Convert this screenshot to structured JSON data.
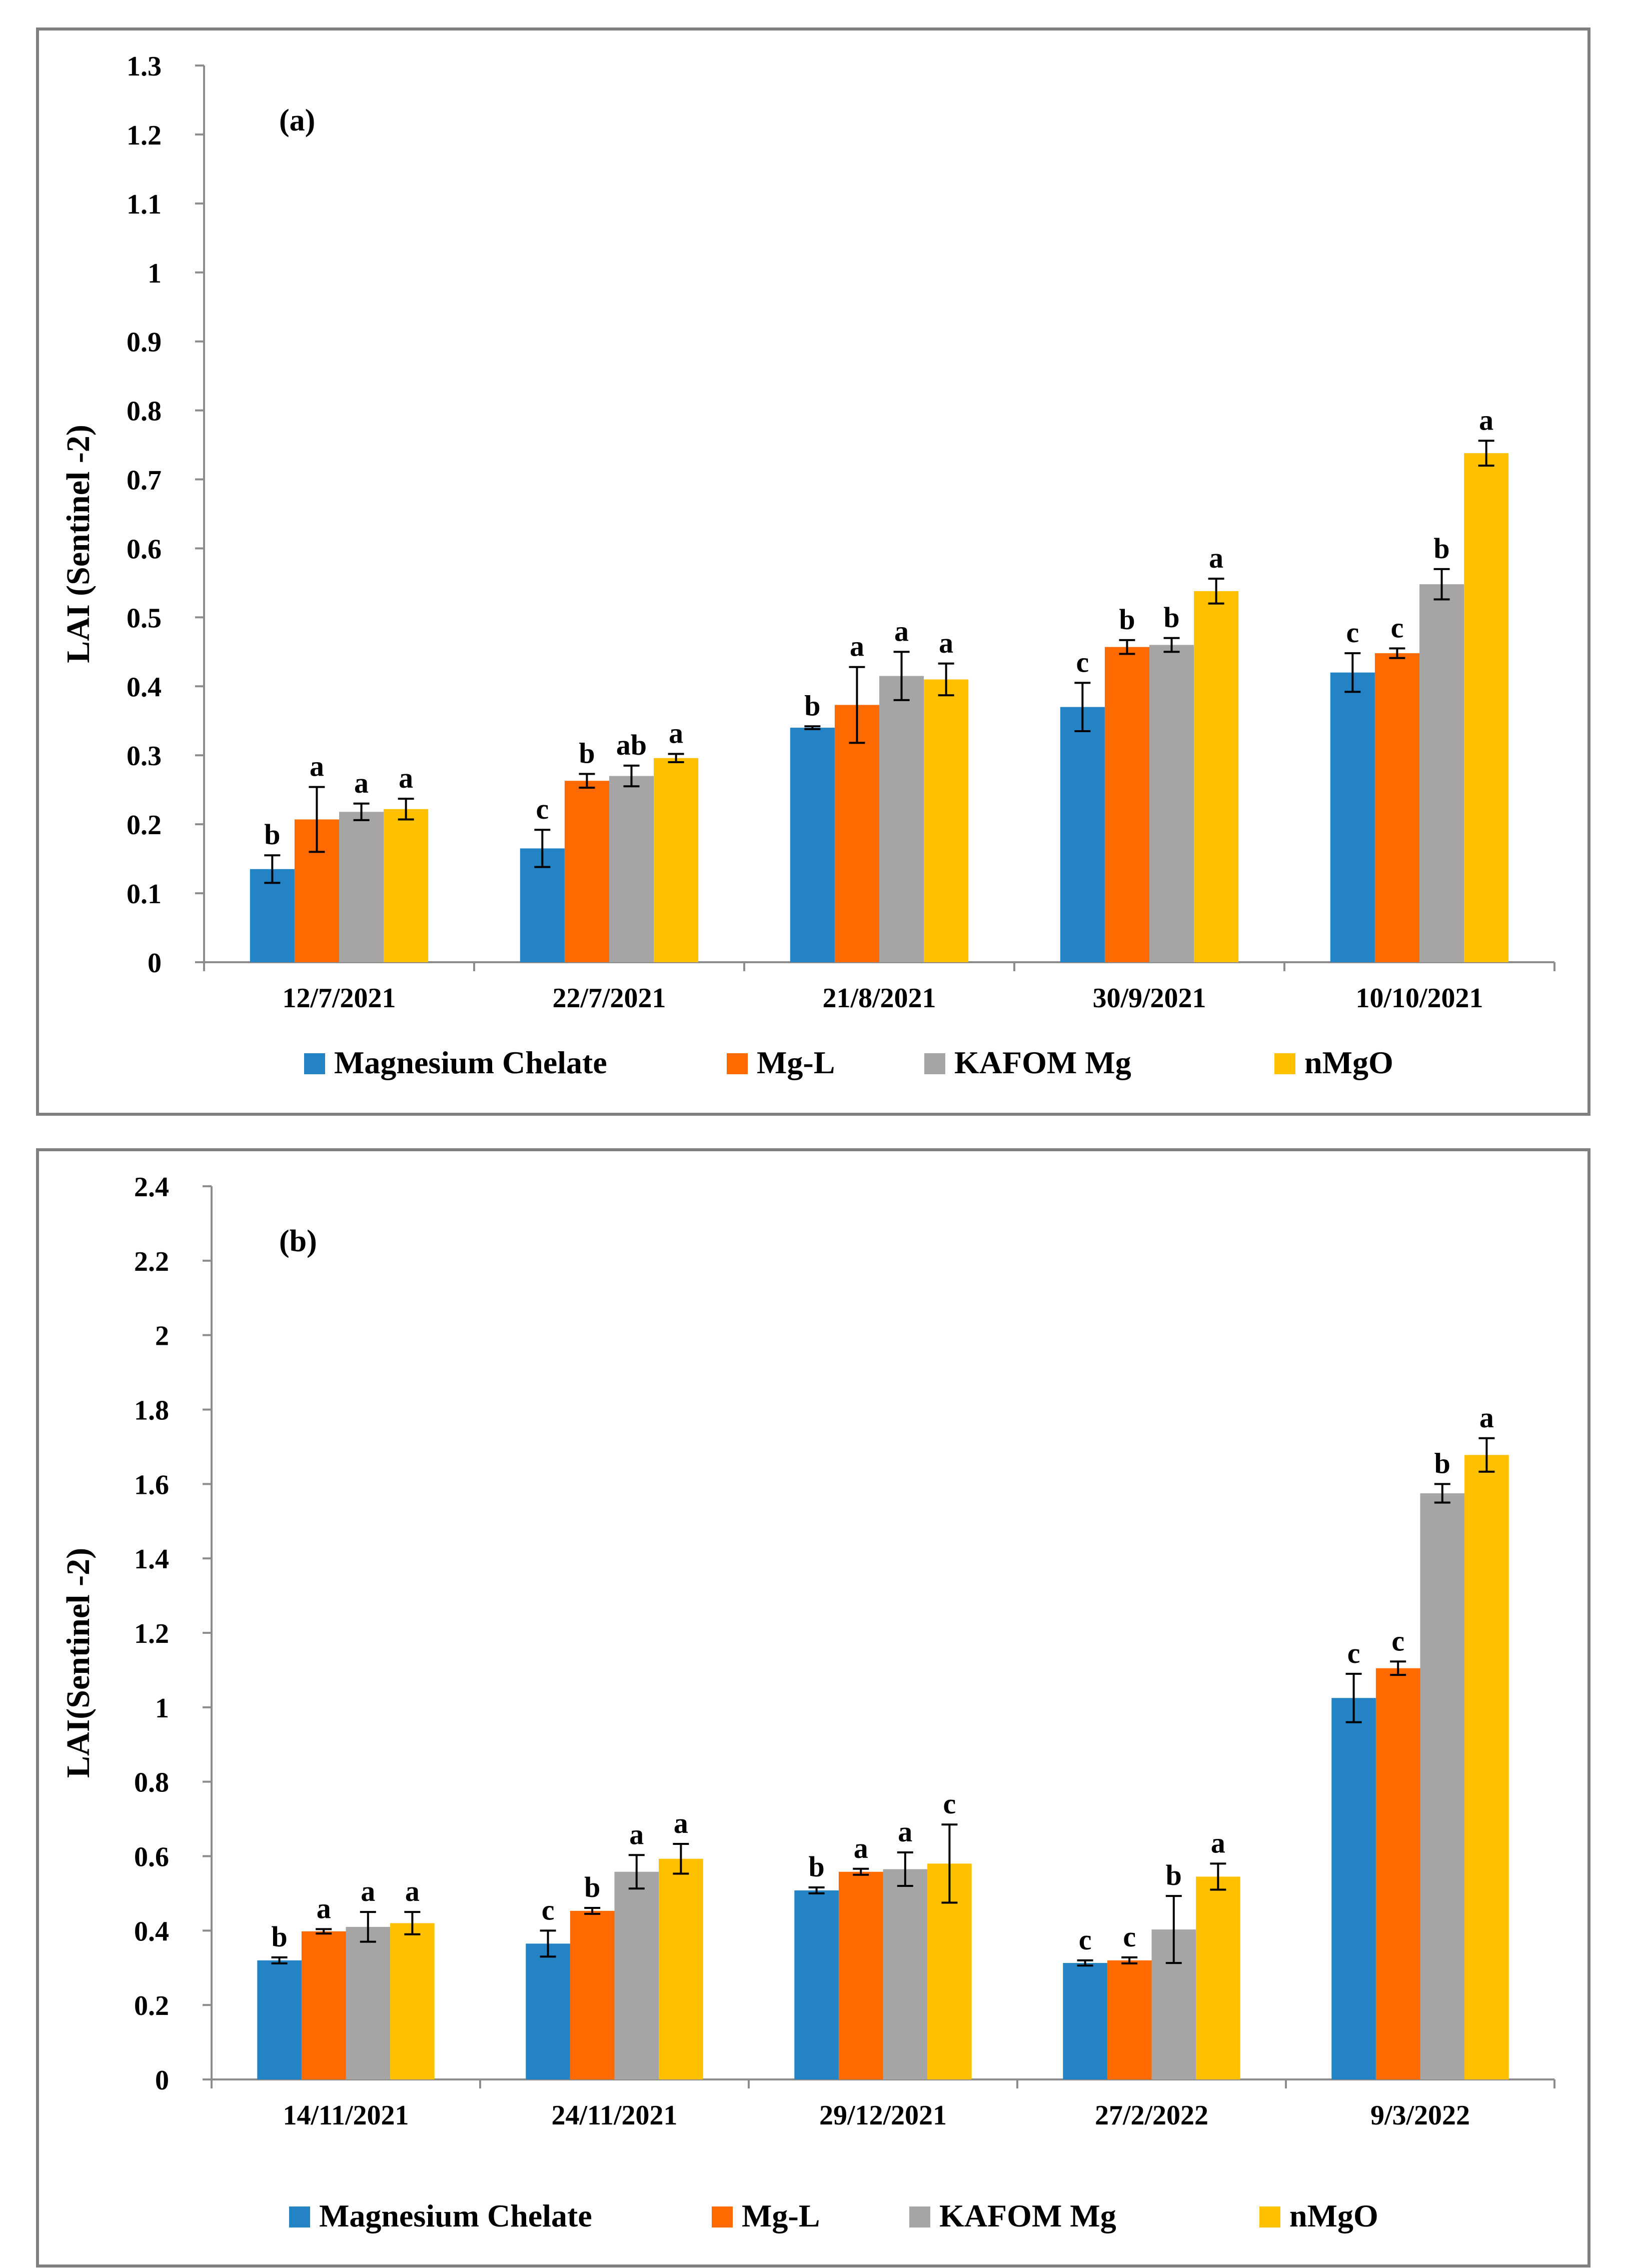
{
  "colors": {
    "Magnesium Chelate": "#2383C5",
    "Mg-L": "#FF6A00",
    "KAFOM Mg": "#A5A5A5",
    "nMgO": "#FFC000",
    "axis": "#8C8C8C",
    "error": "#000000"
  },
  "chart_data": [
    {
      "type": "bar",
      "panel_label": "(a)",
      "ylabel": "LAI (Sentinel -2)",
      "ylim": [
        0,
        1.3
      ],
      "yticks": [
        "0",
        "0.1",
        "0.2",
        "0.3",
        "0.4",
        "0.5",
        "0.6",
        "0.7",
        "0.8",
        "0.9",
        "1",
        "1.1",
        "1.2",
        "1.3"
      ],
      "categories": [
        "12/7/2021",
        "22/7/2021",
        "21/8/2021",
        "30/9/2021",
        "10/10/2021"
      ],
      "series": [
        {
          "name": "Magnesium Chelate",
          "values": [
            0.135,
            0.165,
            0.34,
            0.37,
            0.42
          ],
          "errors": [
            0.02,
            0.027,
            0.002,
            0.035,
            0.028
          ],
          "labels": [
            "b",
            "c",
            "b",
            "c",
            "c"
          ]
        },
        {
          "name": "Mg-L",
          "values": [
            0.207,
            0.263,
            0.373,
            0.457,
            0.448
          ],
          "errors": [
            0.047,
            0.01,
            0.055,
            0.01,
            0.007
          ],
          "labels": [
            "a",
            "b",
            "a",
            "b",
            "c"
          ]
        },
        {
          "name": "KAFOM Mg",
          "values": [
            0.218,
            0.27,
            0.415,
            0.46,
            0.548
          ],
          "errors": [
            0.012,
            0.015,
            0.035,
            0.01,
            0.022
          ],
          "labels": [
            "a",
            "ab",
            "a",
            "b",
            "b"
          ]
        },
        {
          "name": "nMgO",
          "values": [
            0.222,
            0.296,
            0.41,
            0.538,
            0.738
          ],
          "errors": [
            0.015,
            0.006,
            0.023,
            0.018,
            0.018
          ],
          "labels": [
            "a",
            "a",
            "a",
            "a",
            "a"
          ]
        }
      ],
      "legend": [
        "Magnesium Chelate",
        "Mg-L",
        "KAFOM Mg",
        "nMgO"
      ]
    },
    {
      "type": "bar",
      "panel_label": "(b)",
      "ylabel": "LAI(Sentinel -2)",
      "ylim": [
        0,
        2.4
      ],
      "yticks": [
        "0",
        "0.2",
        "0.4",
        "0.6",
        "0.8",
        "1",
        "1.2",
        "1.4",
        "1.6",
        "1.8",
        "2",
        "2.2",
        "2.4"
      ],
      "categories": [
        "14/11/2021",
        "24/11/2021",
        "29/12/2021",
        "27/2/2022",
        "9/3/2022"
      ],
      "series": [
        {
          "name": "Magnesium Chelate",
          "values": [
            0.32,
            0.365,
            0.508,
            0.313,
            1.025
          ],
          "errors": [
            0.008,
            0.035,
            0.008,
            0.007,
            0.065
          ],
          "labels": [
            "b",
            "c",
            "b",
            "c",
            "c"
          ]
        },
        {
          "name": "Mg-L",
          "values": [
            0.398,
            0.453,
            0.558,
            0.32,
            1.105
          ],
          "errors": [
            0.006,
            0.008,
            0.008,
            0.008,
            0.018
          ],
          "labels": [
            "a",
            "b",
            "a",
            "c",
            "c"
          ]
        },
        {
          "name": "KAFOM Mg",
          "values": [
            0.41,
            0.558,
            0.565,
            0.403,
            1.575
          ],
          "errors": [
            0.04,
            0.045,
            0.045,
            0.09,
            0.025
          ],
          "labels": [
            "a",
            "a",
            "a",
            "b",
            "b"
          ]
        },
        {
          "name": "nMgO",
          "values": [
            0.42,
            0.593,
            0.58,
            0.545,
            1.678
          ],
          "errors": [
            0.03,
            0.04,
            0.105,
            0.035,
            0.045
          ],
          "labels": [
            "a",
            "a",
            "c",
            "a",
            "a"
          ]
        }
      ],
      "legend": [
        "Magnesium Chelate",
        "Mg-L",
        "KAFOM Mg",
        "nMgO"
      ]
    }
  ]
}
